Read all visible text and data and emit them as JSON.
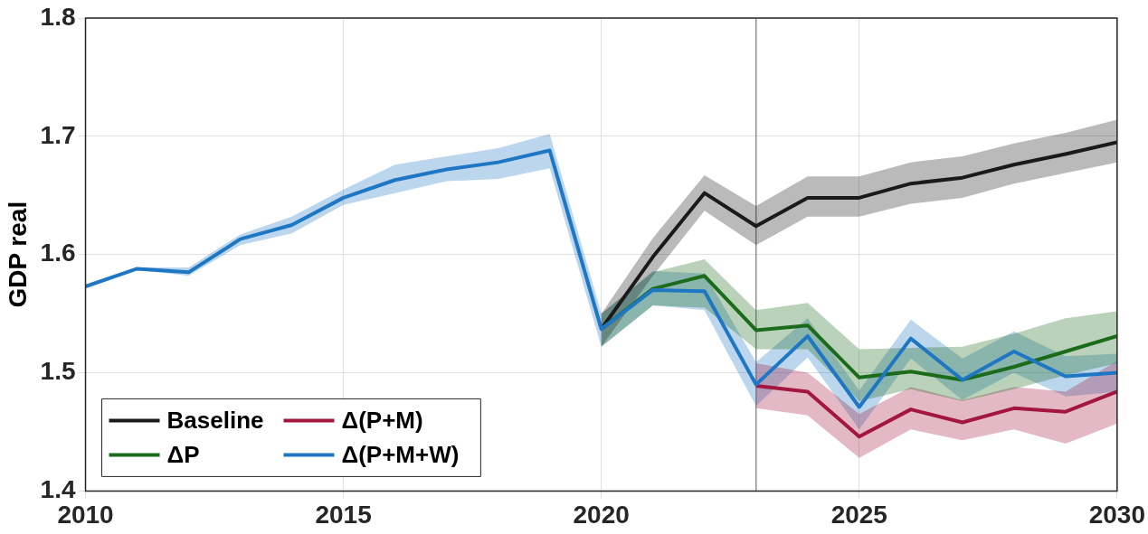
{
  "chart_data": {
    "type": "line",
    "ylabel": "GDP real",
    "x": [
      2010,
      2011,
      2012,
      2013,
      2014,
      2015,
      2016,
      2017,
      2018,
      2019,
      2020,
      2021,
      2022,
      2023,
      2024,
      2025,
      2026,
      2027,
      2028,
      2029,
      2030
    ],
    "xlim": [
      2010,
      2030
    ],
    "xticks": [
      2010,
      2015,
      2020,
      2025,
      2030
    ],
    "ylim": [
      1.4,
      1.8
    ],
    "yticks": [
      1.4,
      1.5,
      1.6,
      1.7,
      1.8
    ],
    "grid": true,
    "legend": "bottom left",
    "line_style": "solid",
    "marker": "none",
    "ref_lines": [
      {
        "axis": "x",
        "value": 2023,
        "label": null,
        "color": "#909090"
      }
    ],
    "series": [
      {
        "name": "Baseline",
        "color": "#1a1a1a",
        "values": [
          null,
          null,
          null,
          null,
          null,
          null,
          null,
          null,
          null,
          null,
          1.537,
          1.598,
          1.652,
          1.624,
          1.648,
          1.648,
          1.66,
          1.665,
          1.676,
          1.685,
          1.695
        ],
        "lower": [
          null,
          null,
          null,
          null,
          null,
          null,
          null,
          null,
          null,
          null,
          1.522,
          1.582,
          1.637,
          1.608,
          1.632,
          1.632,
          1.643,
          1.648,
          1.66,
          1.669,
          1.678
        ],
        "upper": [
          null,
          null,
          null,
          null,
          null,
          null,
          null,
          null,
          null,
          null,
          1.55,
          1.614,
          1.667,
          1.641,
          1.666,
          1.666,
          1.678,
          1.683,
          1.694,
          1.703,
          1.714
        ]
      },
      {
        "name": "ΔP",
        "color": "#1a6b1a",
        "values": [
          null,
          null,
          null,
          null,
          null,
          null,
          null,
          null,
          null,
          null,
          1.537,
          1.571,
          1.582,
          1.536,
          1.54,
          1.496,
          1.501,
          1.494,
          1.505,
          1.518,
          1.531
        ],
        "lower": [
          null,
          null,
          null,
          null,
          null,
          null,
          null,
          null,
          null,
          null,
          1.522,
          1.557,
          1.555,
          1.52,
          1.52,
          1.476,
          1.486,
          1.476,
          1.486,
          1.498,
          1.508
        ],
        "upper": [
          null,
          null,
          null,
          null,
          null,
          null,
          null,
          null,
          null,
          null,
          1.55,
          1.585,
          1.596,
          1.553,
          1.559,
          1.52,
          1.521,
          1.522,
          1.533,
          1.546,
          1.552
        ]
      },
      {
        "name": "Δ(P+M)",
        "color": "#a2163f",
        "values": [
          null,
          null,
          null,
          null,
          null,
          null,
          null,
          null,
          null,
          null,
          null,
          null,
          null,
          1.489,
          1.484,
          1.446,
          1.469,
          1.458,
          1.47,
          1.467,
          1.484
        ],
        "lower": [
          null,
          null,
          null,
          null,
          null,
          null,
          null,
          null,
          null,
          null,
          null,
          null,
          null,
          1.47,
          1.464,
          1.428,
          1.452,
          1.443,
          1.452,
          1.44,
          1.457
        ],
        "upper": [
          null,
          null,
          null,
          null,
          null,
          null,
          null,
          null,
          null,
          null,
          null,
          null,
          null,
          1.508,
          1.5,
          1.465,
          1.488,
          1.477,
          1.488,
          1.484,
          1.51
        ]
      },
      {
        "name": "Δ(P+M+W)",
        "color": "#1f77c4",
        "values": [
          1.573,
          1.588,
          1.585,
          1.613,
          1.625,
          1.648,
          1.663,
          1.672,
          1.678,
          1.688,
          1.537,
          1.57,
          1.569,
          1.49,
          1.531,
          1.471,
          1.529,
          1.494,
          1.518,
          1.497,
          1.5
        ],
        "lower": [
          1.573,
          1.587,
          1.582,
          1.608,
          1.618,
          1.642,
          1.652,
          1.662,
          1.664,
          1.673,
          1.522,
          1.557,
          1.553,
          1.472,
          1.513,
          1.452,
          1.512,
          1.477,
          1.5,
          1.48,
          1.484
        ],
        "upper": [
          1.573,
          1.589,
          1.589,
          1.617,
          1.632,
          1.655,
          1.676,
          1.683,
          1.69,
          1.702,
          1.55,
          1.586,
          1.584,
          1.509,
          1.546,
          1.485,
          1.545,
          1.512,
          1.535,
          1.514,
          1.516
        ]
      }
    ]
  }
}
